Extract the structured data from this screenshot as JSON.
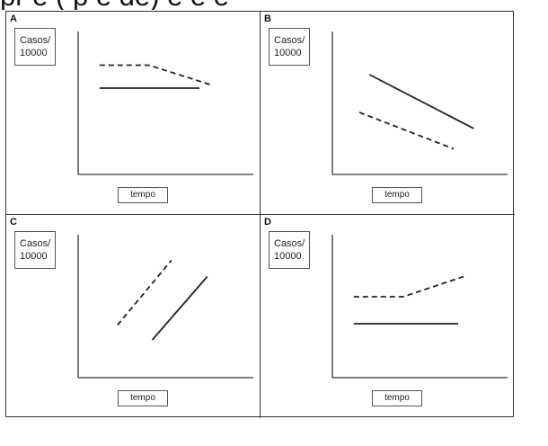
{
  "header": {
    "cut_text": "pr e ( p e de) e e e"
  },
  "chart_data": [
    {
      "type": "line",
      "panel_label": "A",
      "ylabel": "Casos/\n10000",
      "xlabel": "tempo",
      "xlim": [
        0,
        10
      ],
      "ylim": [
        0,
        10
      ],
      "grid": false,
      "series": [
        {
          "style": "dashed",
          "x": [
            1.9,
            6.3,
            12.0
          ],
          "y": [
            8.1,
            8.1,
            6.6
          ]
        },
        {
          "style": "solid",
          "x": [
            1.9,
            10.8
          ],
          "y": [
            6.4,
            6.4
          ]
        }
      ]
    },
    {
      "type": "line",
      "panel_label": "B",
      "ylabel": "Casos/\n10000",
      "xlabel": "tempo",
      "xlim": [
        0,
        10
      ],
      "ylim": [
        0,
        10
      ],
      "grid": false,
      "series": [
        {
          "style": "solid",
          "x": [
            3.3,
            12.6
          ],
          "y": [
            7.4,
            3.4
          ]
        },
        {
          "style": "dashed",
          "x": [
            2.4,
            10.8
          ],
          "y": [
            4.6,
            1.9
          ]
        }
      ]
    },
    {
      "type": "line",
      "panel_label": "C",
      "ylabel": "Casos/\n10000",
      "xlabel": "tempo",
      "xlim": [
        0,
        10
      ],
      "ylim": [
        0,
        10
      ],
      "grid": false,
      "series": [
        {
          "style": "dashed",
          "x": [
            3.5,
            8.3
          ],
          "y": [
            3.9,
            8.7
          ]
        },
        {
          "style": "solid",
          "x": [
            6.6,
            11.5
          ],
          "y": [
            2.8,
            7.5
          ]
        }
      ]
    },
    {
      "type": "line",
      "panel_label": "D",
      "ylabel": "Casos/\n10000",
      "xlabel": "tempo",
      "xlim": [
        0,
        10
      ],
      "ylim": [
        0,
        10
      ],
      "grid": false,
      "series": [
        {
          "style": "dashed",
          "x": [
            1.9,
            6.3,
            11.7
          ],
          "y": [
            6.0,
            6.0,
            7.5
          ]
        },
        {
          "style": "solid",
          "x": [
            1.9,
            11.2
          ],
          "y": [
            4.0,
            4.0
          ]
        }
      ]
    }
  ]
}
